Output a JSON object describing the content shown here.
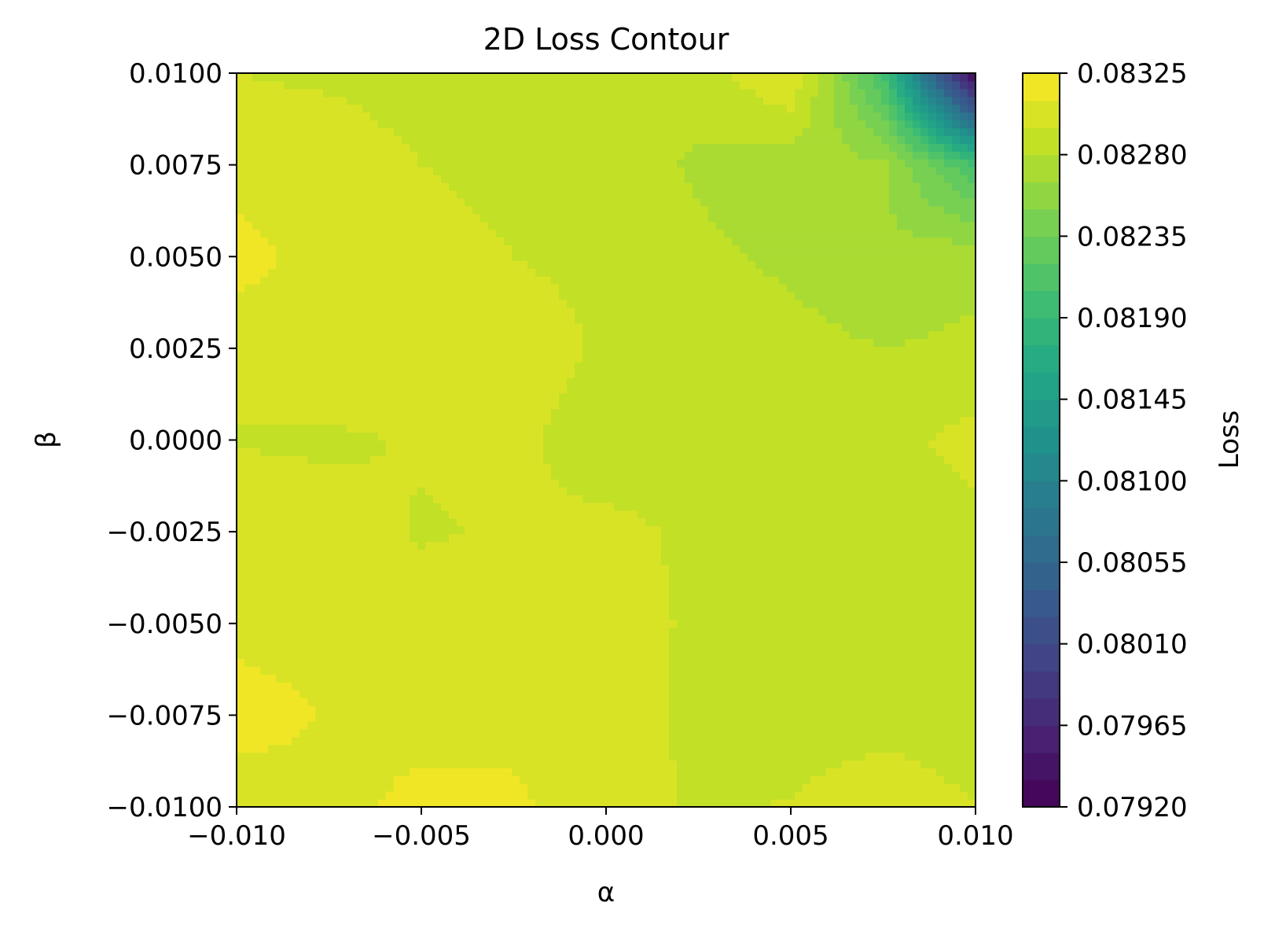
{
  "chart_data": {
    "type": "contourf",
    "title": "2D Loss Contour",
    "xlabel": "α",
    "ylabel": "β",
    "colorbar_label": "Loss",
    "colormap": "viridis",
    "xlim": [
      -0.01,
      0.01
    ],
    "ylim": [
      -0.01,
      0.01
    ],
    "x_ticks": [
      -0.01,
      -0.005,
      0.0,
      0.005,
      0.01
    ],
    "x_tick_labels": [
      "−0.010",
      "−0.005",
      "0.000",
      "0.005",
      "0.010"
    ],
    "y_ticks": [
      -0.01,
      -0.0075,
      -0.005,
      -0.0025,
      0.0,
      0.0025,
      0.005,
      0.0075,
      0.01
    ],
    "y_tick_labels": [
      "−0.0100",
      "−0.0075",
      "−0.0050",
      "−0.0025",
      "0.0000",
      "0.0025",
      "0.0050",
      "0.0075",
      "0.0100"
    ],
    "colorbar_range": [
      0.0792,
      0.08325
    ],
    "colorbar_ticks": [
      0.0792,
      0.07965,
      0.0801,
      0.08055,
      0.081,
      0.08145,
      0.0819,
      0.08235,
      0.0828,
      0.08325
    ],
    "colorbar_tick_labels": [
      "0.07920",
      "0.07965",
      "0.08010",
      "0.08055",
      "0.08100",
      "0.08145",
      "0.08190",
      "0.08235",
      "0.08280",
      "0.08325"
    ],
    "levels": 27,
    "x": [
      -0.01,
      -0.0075,
      -0.005,
      -0.0025,
      0.0,
      0.0025,
      0.005,
      0.0075,
      0.01
    ],
    "y": [
      -0.01,
      -0.0075,
      -0.005,
      -0.0025,
      0.0,
      0.0025,
      0.005,
      0.0075,
      0.01
    ],
    "z": [
      [
        0.08299,
        0.08305,
        0.08314,
        0.08312,
        0.08303,
        0.08293,
        0.08296,
        0.08303,
        0.08295
      ],
      [
        0.08318,
        0.08309,
        0.08305,
        0.08307,
        0.08303,
        0.08291,
        0.08288,
        0.0829,
        0.08289
      ],
      [
        0.08305,
        0.08303,
        0.083,
        0.08305,
        0.08303,
        0.08292,
        0.08291,
        0.0829,
        0.08288
      ],
      [
        0.08305,
        0.083,
        0.08294,
        0.08296,
        0.08299,
        0.08292,
        0.0829,
        0.0829,
        0.0829
      ],
      [
        0.08294,
        0.08293,
        0.08296,
        0.08299,
        0.08286,
        0.08292,
        0.08291,
        0.0829,
        0.083
      ],
      [
        0.08301,
        0.08304,
        0.08305,
        0.08303,
        0.08293,
        0.08291,
        0.08285,
        0.0828,
        0.08283
      ],
      [
        0.08316,
        0.08303,
        0.08301,
        0.08295,
        0.08291,
        0.08283,
        0.08277,
        0.08268,
        0.08276
      ],
      [
        0.08303,
        0.08302,
        0.08295,
        0.08291,
        0.08287,
        0.08278,
        0.08272,
        0.08268,
        0.08205
      ],
      [
        0.08295,
        0.08293,
        0.0829,
        0.08288,
        0.08285,
        0.08287,
        0.0831,
        0.08205,
        0.0792
      ]
    ]
  }
}
